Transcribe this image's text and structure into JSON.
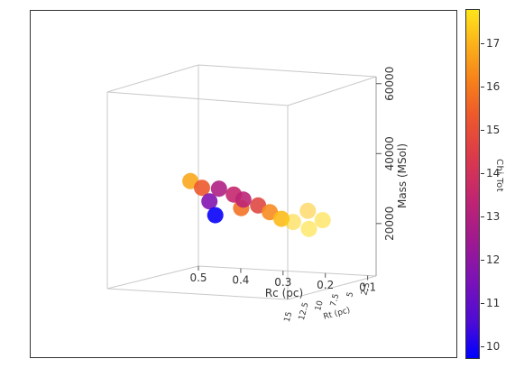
{
  "chart_data": {
    "type": "scatter",
    "title": "",
    "colorbar": {
      "label": "Chi Tot",
      "range": [
        9.7,
        17.8
      ],
      "ticks": [
        "10",
        "11",
        "12",
        "13",
        "14",
        "15",
        "16",
        "17"
      ],
      "colormap": [
        "#0000ff",
        "#7a12b8",
        "#c22570",
        "#ee5a2a",
        "#fbb11a",
        "#ffe51a"
      ]
    },
    "axes": {
      "x": {
        "label": "Rc (pc)",
        "ticks": [
          "0.5",
          "0.4",
          "0.3",
          "0.2",
          "0.1"
        ],
        "range": [
          0.5,
          0.08
        ]
      },
      "y": {
        "label": "Rt (pc)",
        "ticks": [
          "15",
          "12.5",
          "10",
          "7.5",
          "5",
          "2.5"
        ],
        "range": [
          15,
          2.5
        ]
      },
      "z": {
        "label": "Mass (MSol)",
        "ticks": [
          "20000",
          "40000",
          "60000"
        ],
        "range": [
          5000,
          62000
        ]
      }
    },
    "grid": false,
    "legend": "none",
    "points_description_rc_rt_mass_chi": [
      [
        0.44,
        13,
        32000,
        16.0
      ],
      [
        0.42,
        12,
        30000,
        14.5
      ],
      [
        0.41,
        11,
        26000,
        11.5
      ],
      [
        0.4,
        10.5,
        22000,
        9.8
      ],
      [
        0.38,
        12,
        30000,
        12.5
      ],
      [
        0.36,
        10,
        28000,
        13.0
      ],
      [
        0.35,
        9,
        24000,
        15.0
      ],
      [
        0.33,
        11,
        27000,
        12.8
      ],
      [
        0.31,
        9,
        25000,
        14.0
      ],
      [
        0.29,
        8,
        23000,
        15.5
      ],
      [
        0.27,
        7,
        21000,
        16.5
      ],
      [
        0.25,
        6,
        20000,
        17.2
      ],
      [
        0.22,
        5,
        18000,
        17.5
      ],
      [
        0.2,
        8,
        24000,
        16.8
      ],
      [
        0.18,
        6,
        21000,
        17.4
      ]
    ]
  }
}
